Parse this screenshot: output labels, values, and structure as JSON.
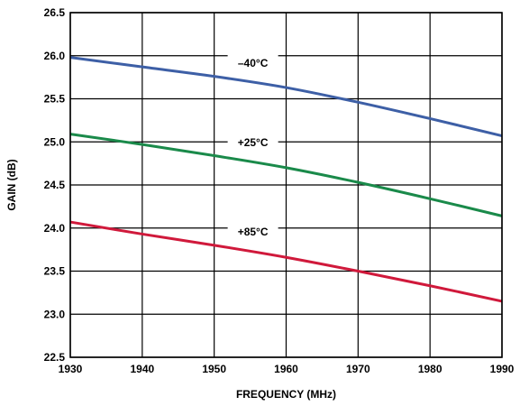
{
  "chart_data": {
    "type": "line",
    "xlabel": "FREQUENCY (MHz)",
    "ylabel": "GAIN (dB)",
    "xlim": [
      1930,
      1990
    ],
    "ylim": [
      22.5,
      26.5
    ],
    "x_ticks": [
      "1930",
      "1940",
      "1950",
      "1960",
      "1970",
      "1980",
      "1990"
    ],
    "y_ticks": [
      "22.5",
      "23.0",
      "23.5",
      "24.0",
      "24.5",
      "25.0",
      "25.5",
      "26.0",
      "26.5"
    ],
    "grid": true,
    "series": [
      {
        "name": "–40°C",
        "color": "#3d5fa6",
        "x": [
          1930,
          1940,
          1950,
          1960,
          1970,
          1980,
          1990
        ],
        "y": [
          25.98,
          25.87,
          25.76,
          25.63,
          25.46,
          25.27,
          25.07
        ]
      },
      {
        "name": "+25°C",
        "color": "#1a8a4a",
        "x": [
          1930,
          1940,
          1950,
          1960,
          1970,
          1980,
          1990
        ],
        "y": [
          25.09,
          24.97,
          24.84,
          24.7,
          24.53,
          24.34,
          24.14
        ]
      },
      {
        "name": "+85°C",
        "color": "#d0193b",
        "x": [
          1930,
          1940,
          1950,
          1960,
          1970,
          1980,
          1990
        ],
        "y": [
          24.07,
          23.93,
          23.8,
          23.66,
          23.5,
          23.33,
          23.15
        ]
      }
    ]
  }
}
